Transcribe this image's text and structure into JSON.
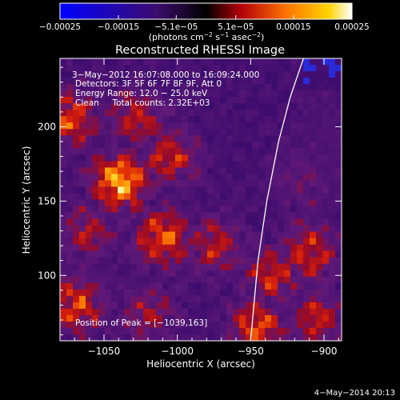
{
  "chart_data": {
    "type": "heatmap",
    "title": "Reconstructed RHESSI Image",
    "xlabel": "Heliocentric X (arcsec)",
    "ylabel": "Heliocentric Y (arcsec)",
    "xlim": [
      -1080,
      -888
    ],
    "ylim": [
      56,
      246
    ],
    "x_ticks": [
      -1050,
      -1000,
      -950,
      -900
    ],
    "x_tick_labels": [
      "−1050",
      "−1000",
      "−950",
      "−900"
    ],
    "y_ticks": [
      100,
      150,
      200
    ],
    "y_tick_labels": [
      "100",
      "150",
      "200"
    ],
    "colorbar": {
      "range": [
        -0.00025,
        0.00025
      ],
      "ticks": [
        -0.00025,
        -0.00015,
        -5.1e-05,
        5.1e-05,
        0.00015,
        0.00025
      ],
      "tick_labels": [
        "−0.00025",
        "−0.00015",
        "−5.1e−05",
        "5.1e−05",
        "0.00015",
        "0.00025"
      ],
      "unit_parts": [
        "(photons cm",
        "−2",
        " s",
        "−1",
        " asec",
        "−2",
        ")"
      ]
    },
    "annotations": [
      "3−May−2012 16:07:08.000 to 16:09:24.000",
      "Detectors: 3F 5F 6F 7F 8F 9F, Att 0",
      "Energy Range: 12.0 − 25.0 keV",
      "Clean     Total counts: 2.32E+03"
    ],
    "peak_label": "Position of Peak = [−1039,163]",
    "limb_curve": [
      [
        -950,
        56
      ],
      [
        -945,
        110
      ],
      [
        -939,
        150
      ],
      [
        -931,
        190
      ],
      [
        -923,
        220
      ],
      [
        -914,
        246
      ]
    ],
    "hot_spots": [
      {
        "x": -1039,
        "y": 163,
        "v": 1.0
      },
      {
        "x": -1073,
        "y": 206,
        "v": 0.7
      },
      {
        "x": -1028,
        "y": 205,
        "v": 0.55
      },
      {
        "x": -1005,
        "y": 180,
        "v": 0.6
      },
      {
        "x": -1010,
        "y": 125,
        "v": 0.75
      },
      {
        "x": -1060,
        "y": 130,
        "v": 0.5
      },
      {
        "x": -1070,
        "y": 80,
        "v": 0.7
      },
      {
        "x": -1020,
        "y": 75,
        "v": 0.45
      },
      {
        "x": -975,
        "y": 120,
        "v": 0.55
      },
      {
        "x": -935,
        "y": 100,
        "v": 0.6
      },
      {
        "x": -910,
        "y": 115,
        "v": 0.65
      },
      {
        "x": -915,
        "y": 165,
        "v": 0.4
      },
      {
        "x": -945,
        "y": 65,
        "v": 0.7
      },
      {
        "x": -905,
        "y": 70,
        "v": 0.55
      }
    ]
  },
  "footer": {
    "date": "4−May−2014 20:13"
  }
}
